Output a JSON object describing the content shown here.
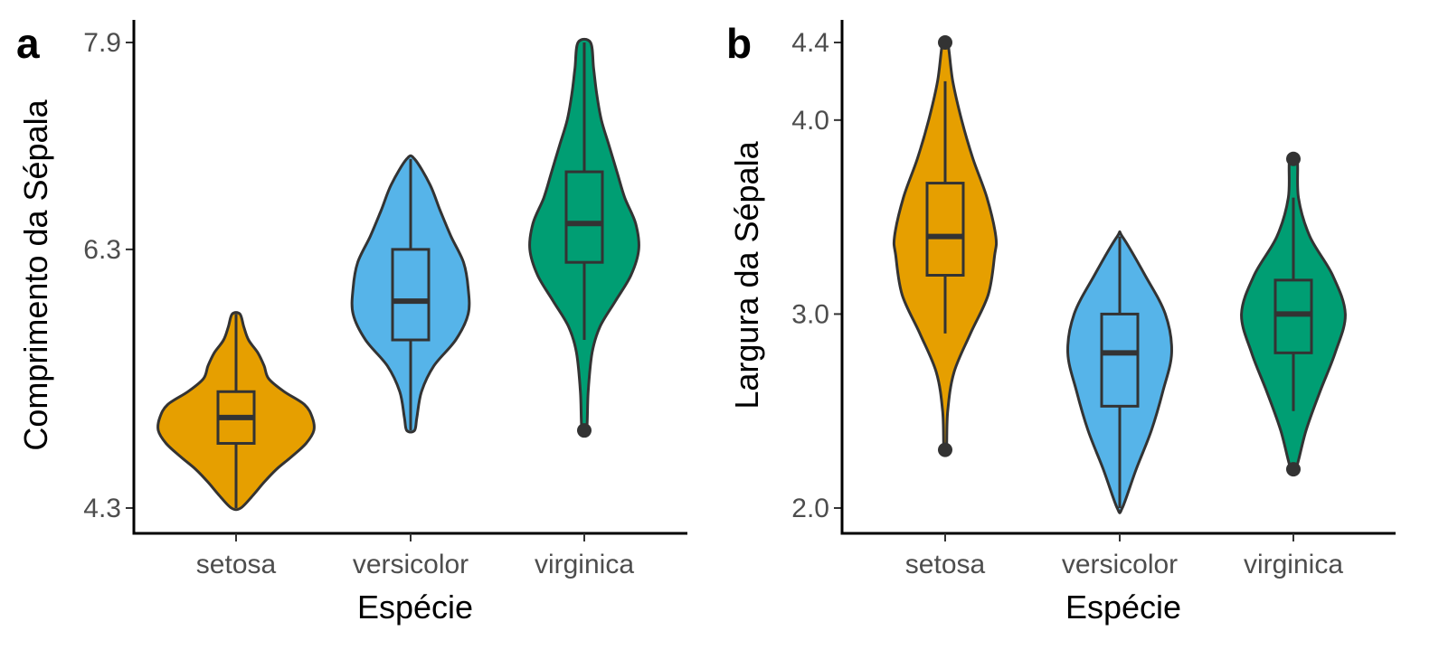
{
  "chart_data": [
    {
      "type": "violin",
      "panel_label": "a",
      "xlabel": "Espécie",
      "ylabel": "Comprimento da Sépala",
      "ylim": [
        4.3,
        7.9
      ],
      "yticks": [
        "4.3",
        "6.3",
        "7.9"
      ],
      "categories": [
        "setosa",
        "versicolor",
        "virginica"
      ],
      "series": [
        {
          "name": "setosa",
          "color": "#E69F00",
          "violin_min": 4.3,
          "violin_max": 5.8,
          "profile": [
            [
              4.3,
              0.06
            ],
            [
              4.4,
              0.22
            ],
            [
              4.5,
              0.36
            ],
            [
              4.6,
              0.52
            ],
            [
              4.7,
              0.72
            ],
            [
              4.8,
              0.9
            ],
            [
              4.9,
              1.0
            ],
            [
              5.0,
              0.98
            ],
            [
              5.1,
              0.88
            ],
            [
              5.2,
              0.62
            ],
            [
              5.3,
              0.42
            ],
            [
              5.4,
              0.36
            ],
            [
              5.5,
              0.28
            ],
            [
              5.6,
              0.16
            ],
            [
              5.7,
              0.1
            ],
            [
              5.8,
              0.05
            ]
          ],
          "box": {
            "q1": 4.8,
            "median": 5.0,
            "q3": 5.2,
            "whisker_low": 4.3,
            "whisker_high": 5.8
          },
          "outliers": []
        },
        {
          "name": "versicolor",
          "color": "#56B4E9",
          "violin_min": 4.9,
          "violin_max": 7.0,
          "profile": [
            [
              4.9,
              0.05
            ],
            [
              5.0,
              0.08
            ],
            [
              5.2,
              0.14
            ],
            [
              5.4,
              0.3
            ],
            [
              5.6,
              0.58
            ],
            [
              5.8,
              0.74
            ],
            [
              6.0,
              0.74
            ],
            [
              6.2,
              0.68
            ],
            [
              6.4,
              0.52
            ],
            [
              6.6,
              0.38
            ],
            [
              6.8,
              0.25
            ],
            [
              7.0,
              0.05
            ]
          ],
          "box": {
            "q1": 5.6,
            "median": 5.9,
            "q3": 6.3,
            "whisker_low": 4.9,
            "whisker_high": 7.0
          },
          "outliers": []
        },
        {
          "name": "virginica",
          "color": "#009E73",
          "violin_min": 4.9,
          "violin_max": 7.9,
          "profile": [
            [
              4.9,
              0.03
            ],
            [
              5.2,
              0.05
            ],
            [
              5.5,
              0.1
            ],
            [
              5.7,
              0.2
            ],
            [
              5.9,
              0.4
            ],
            [
              6.1,
              0.6
            ],
            [
              6.3,
              0.7
            ],
            [
              6.5,
              0.66
            ],
            [
              6.7,
              0.52
            ],
            [
              6.9,
              0.42
            ],
            [
              7.1,
              0.32
            ],
            [
              7.3,
              0.22
            ],
            [
              7.5,
              0.16
            ],
            [
              7.7,
              0.12
            ],
            [
              7.9,
              0.08
            ]
          ],
          "box": {
            "q1": 6.2,
            "median": 6.5,
            "q3": 6.9,
            "whisker_low": 5.6,
            "whisker_high": 7.9
          },
          "outliers": [
            4.9
          ]
        }
      ]
    },
    {
      "type": "violin",
      "panel_label": "b",
      "xlabel": "Espécie",
      "ylabel": "Largura da Sépala",
      "ylim": [
        2.0,
        4.4
      ],
      "yticks": [
        "2.0",
        "3.0",
        "4.0",
        "4.4"
      ],
      "categories": [
        "setosa",
        "versicolor",
        "virginica"
      ],
      "series": [
        {
          "name": "setosa",
          "color": "#E69F00",
          "violin_min": 2.3,
          "violin_max": 4.4,
          "profile": [
            [
              2.3,
              0.02
            ],
            [
              2.5,
              0.04
            ],
            [
              2.7,
              0.14
            ],
            [
              2.9,
              0.4
            ],
            [
              3.1,
              0.68
            ],
            [
              3.3,
              0.78
            ],
            [
              3.4,
              0.8
            ],
            [
              3.6,
              0.66
            ],
            [
              3.8,
              0.44
            ],
            [
              4.0,
              0.26
            ],
            [
              4.2,
              0.12
            ],
            [
              4.4,
              0.04
            ]
          ],
          "box": {
            "q1": 3.2,
            "median": 3.4,
            "q3": 3.675,
            "whisker_low": 2.9,
            "whisker_high": 4.2
          },
          "outliers": [
            2.3,
            4.4
          ]
        },
        {
          "name": "versicolor",
          "color": "#56B4E9",
          "violin_min": 2.0,
          "violin_max": 3.4,
          "profile": [
            [
              2.0,
              0.04
            ],
            [
              2.2,
              0.26
            ],
            [
              2.4,
              0.5
            ],
            [
              2.6,
              0.68
            ],
            [
              2.8,
              0.82
            ],
            [
              3.0,
              0.72
            ],
            [
              3.2,
              0.4
            ],
            [
              3.4,
              0.04
            ]
          ],
          "box": {
            "q1": 2.525,
            "median": 2.8,
            "q3": 3.0,
            "whisker_low": 2.0,
            "whisker_high": 3.4
          },
          "outliers": []
        },
        {
          "name": "virginica",
          "color": "#009E73",
          "violin_min": 2.2,
          "violin_max": 3.8,
          "profile": [
            [
              2.2,
              0.04
            ],
            [
              2.4,
              0.2
            ],
            [
              2.6,
              0.42
            ],
            [
              2.8,
              0.66
            ],
            [
              3.0,
              0.82
            ],
            [
              3.2,
              0.62
            ],
            [
              3.4,
              0.26
            ],
            [
              3.6,
              0.08
            ],
            [
              3.8,
              0.06
            ]
          ],
          "box": {
            "q1": 2.8,
            "median": 3.0,
            "q3": 3.175,
            "whisker_low": 2.5,
            "whisker_high": 3.6
          },
          "outliers": [
            2.2,
            3.8
          ]
        }
      ]
    }
  ]
}
